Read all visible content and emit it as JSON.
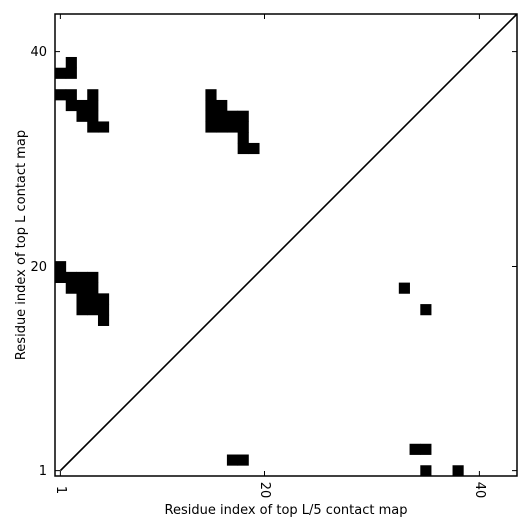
{
  "chart_data": {
    "type": "heatmap",
    "xlabel": "Residue index of top L/5 contact map",
    "ylabel": "Residue index of top L contact map",
    "xlim": [
      0.5,
      43.5
    ],
    "ylim": [
      0.5,
      43.5
    ],
    "x_ticks": [
      {
        "value": 1,
        "label": "1"
      },
      {
        "value": 20,
        "label": "20"
      },
      {
        "value": 40,
        "label": "40"
      }
    ],
    "y_ticks": [
      {
        "value": 1,
        "label": "1"
      },
      {
        "value": 20,
        "label": "20"
      },
      {
        "value": 40,
        "label": "40"
      }
    ],
    "diagonal": true,
    "cell_color": "#000000",
    "top_L_contacts": [
      [
        1,
        38
      ],
      [
        2,
        38
      ],
      [
        2,
        39
      ],
      [
        1,
        36
      ],
      [
        2,
        36
      ],
      [
        2,
        35
      ],
      [
        3,
        35
      ],
      [
        3,
        34
      ],
      [
        4,
        34
      ],
      [
        4,
        35
      ],
      [
        4,
        36
      ],
      [
        4,
        33
      ],
      [
        5,
        33
      ],
      [
        15,
        33
      ],
      [
        15,
        34
      ],
      [
        15,
        35
      ],
      [
        15,
        36
      ],
      [
        16,
        33
      ],
      [
        16,
        34
      ],
      [
        16,
        35
      ],
      [
        17,
        33
      ],
      [
        17,
        34
      ],
      [
        18,
        33
      ],
      [
        18,
        34
      ],
      [
        18,
        32
      ],
      [
        18,
        31
      ],
      [
        19,
        31
      ],
      [
        1,
        19
      ],
      [
        1,
        20
      ],
      [
        2,
        19
      ],
      [
        2,
        18
      ],
      [
        3,
        19
      ],
      [
        3,
        18
      ],
      [
        3,
        17
      ],
      [
        3,
        16
      ],
      [
        4,
        19
      ],
      [
        4,
        18
      ],
      [
        4,
        17
      ],
      [
        4,
        16
      ],
      [
        5,
        17
      ],
      [
        5,
        16
      ],
      [
        5,
        15
      ]
    ],
    "top_L5_contacts": [
      [
        17,
        2
      ],
      [
        18,
        2
      ],
      [
        33,
        18
      ],
      [
        35,
        16
      ],
      [
        34,
        3
      ],
      [
        35,
        3
      ],
      [
        35,
        1
      ],
      [
        38,
        1
      ]
    ]
  }
}
